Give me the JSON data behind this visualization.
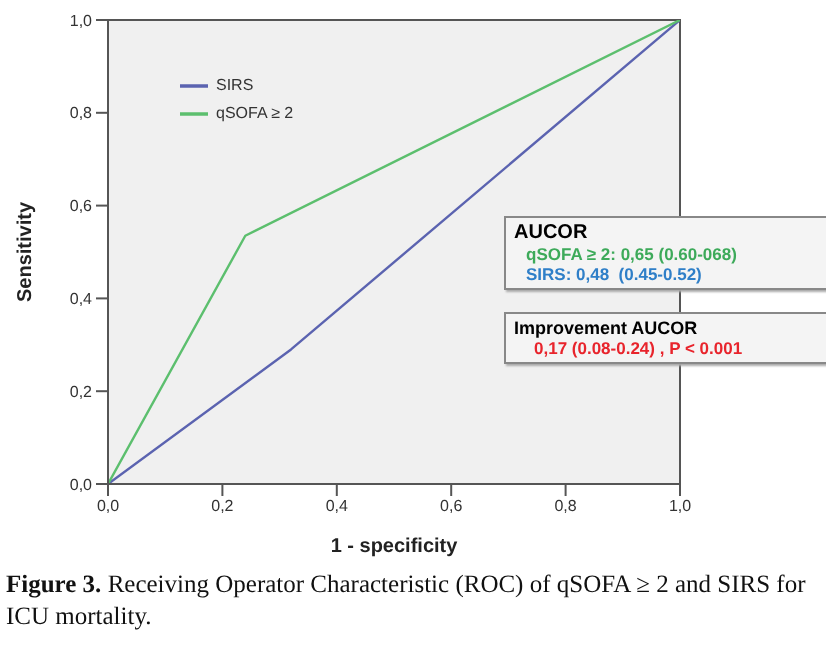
{
  "chart_data": {
    "type": "line",
    "xlabel": "1 - specificity",
    "ylabel": "Sensitivity",
    "series": [
      {
        "name": "SIRS",
        "color": "#5b63b0",
        "x": [
          0,
          0.32,
          1
        ],
        "values": [
          0,
          0.29,
          1
        ]
      },
      {
        "name": "qSOFA ≥ 2",
        "color": "#5cbf6e",
        "x": [
          0,
          0.24,
          1
        ],
        "values": [
          0,
          0.535,
          1
        ]
      }
    ],
    "xlim": [
      0,
      1
    ],
    "ylim": [
      0,
      1
    ],
    "xticks": [
      {
        "value": 0,
        "label": "0,0"
      },
      {
        "value": 0.2,
        "label": "0,2"
      },
      {
        "value": 0.4,
        "label": "0,4"
      },
      {
        "value": 0.6,
        "label": "0,6"
      },
      {
        "value": 0.8,
        "label": "0,8"
      },
      {
        "value": 1,
        "label": "1,0"
      }
    ],
    "yticks": [
      {
        "value": 0,
        "label": "0,0"
      },
      {
        "value": 0.2,
        "label": "0,2"
      },
      {
        "value": 0.4,
        "label": "0,4"
      },
      {
        "value": 0.6,
        "label": "0,6"
      },
      {
        "value": 0.8,
        "label": "0,8"
      },
      {
        "value": 1,
        "label": "1,0"
      }
    ],
    "legend": "top left",
    "marker": "none",
    "line_style": "solid",
    "annotations": [
      "AUCOR",
      "qSOFA ≥ 2: 0,65 (0.60-068)",
      "SIRS: 0,48  (0.45-0.52)",
      "Improvement AUCOR",
      "0,17 (0.08-0.24) , P < 0.001",
      "Figure 3. Receiving Operator Characteristic (ROC) of qSOFA ≥ 2 and SIRS for ICU mortality."
    ]
  }
}
